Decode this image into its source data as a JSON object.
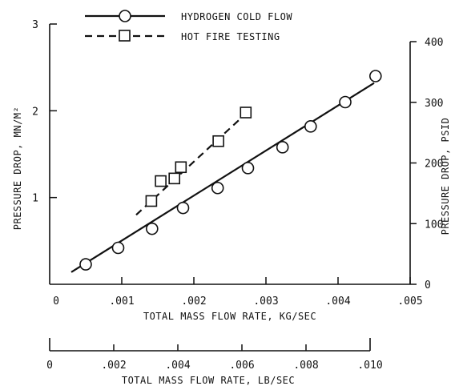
{
  "chart_data": {
    "type": "line",
    "axes": {
      "bottom_primary": {
        "label": "TOTAL MASS FLOW RATE, KG/SEC",
        "range": [
          0,
          0.005
        ],
        "ticks": [
          0,
          0.001,
          0.002,
          0.003,
          0.004,
          0.005
        ],
        "tick_labels": [
          "0",
          ".001",
          ".002",
          ".003",
          ".004",
          ".005"
        ]
      },
      "bottom_secondary": {
        "label": "TOTAL MASS FLOW RATE, LB/SEC",
        "range": [
          0,
          0.011
        ],
        "ticks": [
          0,
          0.002,
          0.004,
          0.006,
          0.008,
          0.01
        ],
        "tick_labels": [
          "0",
          ".002",
          ".004",
          ".006",
          ".008",
          ".010"
        ]
      },
      "left": {
        "label": "PRESSURE DROP, MN/M²",
        "range": [
          0,
          3
        ],
        "ticks": [
          1,
          2,
          3
        ],
        "tick_labels": [
          "1",
          "2",
          "3"
        ]
      },
      "right": {
        "label": "PRESSURE DROP, PSID",
        "range": [
          0,
          400
        ],
        "ticks": [
          0,
          100,
          200,
          300,
          400
        ],
        "tick_labels": [
          "0",
          "100",
          "200",
          "300",
          "400"
        ]
      }
    },
    "series": [
      {
        "name": "HYDROGEN COLD FLOW",
        "marker": "circle",
        "line": "solid",
        "x": [
          0.0005,
          0.00095,
          0.00142,
          0.00185,
          0.00233,
          0.00275,
          0.00323,
          0.00362,
          0.0041,
          0.00452
        ],
        "y": [
          0.23,
          0.42,
          0.64,
          0.88,
          1.11,
          1.34,
          1.58,
          1.82,
          2.1,
          2.4
        ],
        "fit_line": {
          "x": [
            0.0003,
            0.0045
          ],
          "y": [
            0.14,
            2.32
          ]
        }
      },
      {
        "name": "HOT FIRE TESTING",
        "marker": "square",
        "line": "dashed",
        "x": [
          0.00141,
          0.00154,
          0.00173,
          0.00182,
          0.00234,
          0.00272
        ],
        "y": [
          0.96,
          1.19,
          1.22,
          1.35,
          1.65,
          1.98
        ],
        "fit_line": {
          "x": [
            0.0012,
            0.0027
          ],
          "y": [
            0.8,
            1.95
          ]
        }
      }
    ],
    "legend": {
      "placement": "top"
    }
  }
}
